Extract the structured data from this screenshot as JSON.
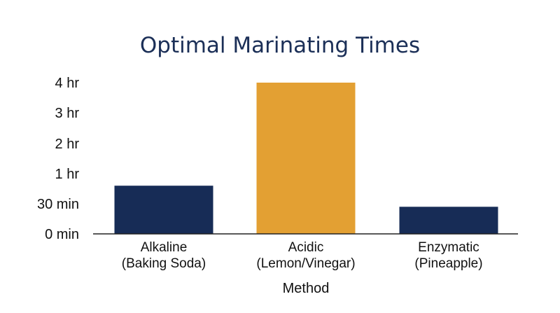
{
  "chart_data": {
    "type": "bar",
    "title": "Optimal Marinating Times",
    "xlabel": "Method",
    "ylabel": "",
    "categories": [
      [
        "Alkaline",
        "(Baking Soda)"
      ],
      [
        "Acidic",
        "(Lemon/Vinegar)"
      ],
      [
        "Enzymatic",
        "(Pineapple)"
      ]
    ],
    "values_minutes": [
      48,
      240,
      27
    ],
    "y_ticks": [
      {
        "label": "0 min",
        "value": 0
      },
      {
        "label": "30 min",
        "value": 30
      },
      {
        "label": "1 hr",
        "value": 60
      },
      {
        "label": "2 hr",
        "value": 120
      },
      {
        "label": "3 hr",
        "value": 180
      },
      {
        "label": "4 hr",
        "value": 240
      }
    ],
    "colors": [
      "#172c56",
      "#e3a033",
      "#172c56"
    ],
    "grid": false,
    "legend": "none"
  }
}
